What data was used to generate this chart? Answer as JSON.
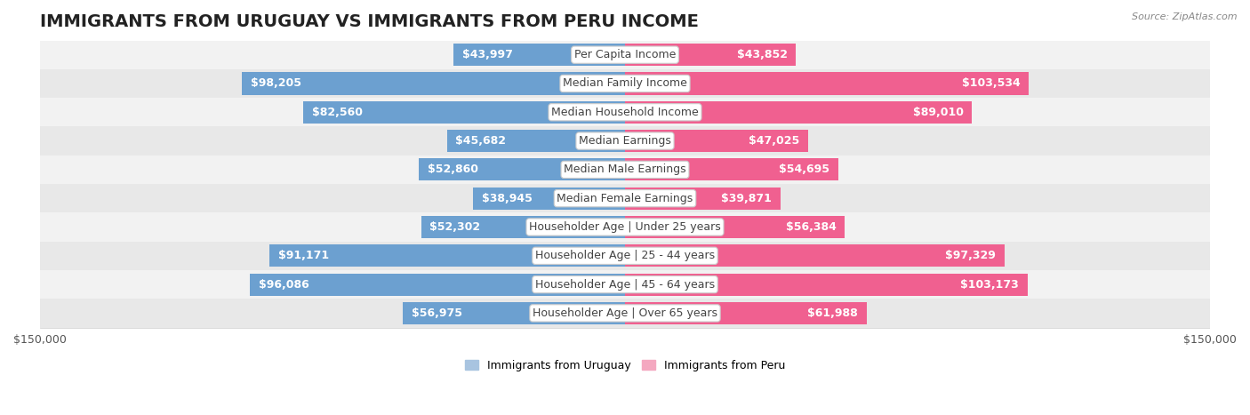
{
  "title": "IMMIGRANTS FROM URUGUAY VS IMMIGRANTS FROM PERU INCOME",
  "source": "Source: ZipAtlas.com",
  "categories": [
    "Per Capita Income",
    "Median Family Income",
    "Median Household Income",
    "Median Earnings",
    "Median Male Earnings",
    "Median Female Earnings",
    "Householder Age | Under 25 years",
    "Householder Age | 25 - 44 years",
    "Householder Age | 45 - 64 years",
    "Householder Age | Over 65 years"
  ],
  "uruguay_values": [
    43997,
    98205,
    82560,
    45682,
    52860,
    38945,
    52302,
    91171,
    96086,
    56975
  ],
  "peru_values": [
    43852,
    103534,
    89010,
    47025,
    54695,
    39871,
    56384,
    97329,
    103173,
    61988
  ],
  "uruguay_labels": [
    "$43,997",
    "$98,205",
    "$82,560",
    "$45,682",
    "$52,860",
    "$38,945",
    "$52,302",
    "$91,171",
    "$96,086",
    "$56,975"
  ],
  "peru_labels": [
    "$43,852",
    "$103,534",
    "$89,010",
    "$47,025",
    "$54,695",
    "$39,871",
    "$56,384",
    "$97,329",
    "$103,173",
    "$61,988"
  ],
  "uruguay_color_light": "#a8c4e0",
  "uruguay_color_dark": "#6ca0d0",
  "peru_color_light": "#f4a8c0",
  "peru_color_dark": "#f06090",
  "max_value": 150000,
  "bar_height": 0.78,
  "row_colors": [
    "#f2f2f2",
    "#e8e8e8"
  ],
  "legend_uruguay": "Immigrants from Uruguay",
  "legend_peru": "Immigrants from Peru",
  "title_fontsize": 14,
  "label_fontsize": 9,
  "category_fontsize": 9,
  "axis_fontsize": 9,
  "white_label_threshold": 0.18
}
